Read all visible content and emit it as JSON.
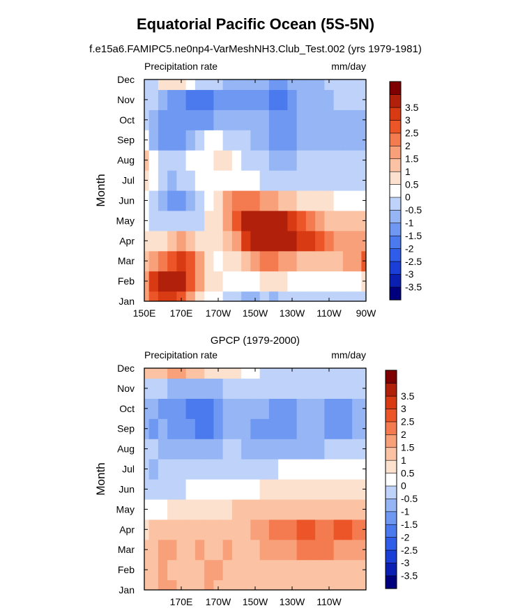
{
  "figure": {
    "title": "Equatorial Pacific Ocean (5S-5N)",
    "subtitle": "f.e15a6.FAMIPC5.ne0np4-VarMeshNH3.Club_Test.002 (yrs 1979-1981)"
  },
  "colorbar": {
    "colors": [
      "#00007f",
      "#0b1fb3",
      "#1b3ed6",
      "#2f5ce8",
      "#4a7aee",
      "#6e98f2",
      "#96b5f5",
      "#bfd3fa",
      "#ffffff",
      "#fde1cf",
      "#fbc2a3",
      "#f8a079",
      "#f47b4f",
      "#ec5528",
      "#d83a14",
      "#b0200b",
      "#7f0000"
    ],
    "tick_labels": [
      "-3.5",
      "-3",
      "-2.5",
      "-2",
      "-1.5",
      "-1",
      "-0.5",
      "0",
      "0.5",
      "1",
      "1.5",
      "2",
      "2.5",
      "3",
      "3.5"
    ]
  },
  "chart_data": [
    {
      "type": "heatmap",
      "title": "",
      "left_string": "Precipitation rate",
      "right_string": "mm/day",
      "xlabel": "",
      "ylabel": "Month",
      "x_ticks": [
        "150E",
        "170E",
        "170W",
        "150W",
        "130W",
        "110W",
        "90W"
      ],
      "x_values_deg_east": [
        150,
        170,
        190,
        210,
        230,
        250,
        270
      ],
      "y_ticks": [
        "Jan",
        "Feb",
        "Mar",
        "Apr",
        "May",
        "Jun",
        "Jul",
        "Aug",
        "Sep",
        "Oct",
        "Nov",
        "Dec"
      ],
      "levels": [
        -3.5,
        -3,
        -2.5,
        -2,
        -1.5,
        -1,
        -0.5,
        0,
        0.5,
        1,
        1.5,
        2,
        2.5,
        3,
        3.5
      ],
      "longitudes": [
        150,
        155,
        160,
        165,
        170,
        175,
        180,
        185,
        190,
        195,
        200,
        205,
        210,
        215,
        220,
        225,
        230,
        235,
        240,
        245,
        250,
        255,
        260,
        265,
        270
      ],
      "months": [
        "Jan",
        "Feb",
        "Mar",
        "Apr",
        "May",
        "Jun",
        "Jul",
        "Aug",
        "Sep",
        "Oct",
        "Nov",
        "Dec"
      ],
      "values": [
        [
          1.5,
          2.5,
          3.0,
          3.0,
          2.5,
          1.5,
          0.5,
          0.2,
          0.0,
          -0.3,
          -0.5,
          -0.6,
          -0.6,
          -0.5,
          -0.6,
          -0.5,
          -0.5,
          -0.5,
          -0.5,
          -0.5,
          -0.5,
          -0.5,
          -0.5,
          -0.5,
          -0.5
        ],
        [
          1.5,
          3.0,
          4.0,
          4.0,
          3.5,
          2.5,
          1.5,
          0.5,
          0.5,
          0.3,
          0.0,
          0.0,
          0.0,
          0.5,
          0.5,
          0.5,
          0.0,
          0.0,
          0.0,
          0.0,
          0.0,
          0.0,
          0.0,
          0.3,
          0.5
        ],
        [
          1.0,
          1.5,
          2.0,
          2.5,
          3.0,
          2.5,
          1.5,
          0.5,
          0.3,
          0.5,
          0.5,
          1.0,
          1.5,
          2.0,
          2.0,
          1.5,
          1.5,
          1.0,
          1.0,
          1.0,
          1.0,
          1.0,
          1.5,
          1.5,
          2.5
        ],
        [
          0.5,
          0.5,
          0.5,
          1.0,
          1.5,
          1.0,
          0.5,
          0.5,
          0.5,
          1.0,
          1.5,
          3.0,
          3.5,
          3.5,
          4.0,
          4.0,
          3.5,
          3.0,
          3.0,
          2.5,
          2.0,
          1.5,
          1.5,
          1.5,
          1.5
        ],
        [
          0.0,
          -0.5,
          -0.5,
          -0.5,
          -0.5,
          -0.5,
          -0.5,
          0.5,
          0.5,
          1.5,
          2.5,
          3.5,
          4.0,
          4.0,
          4.0,
          3.5,
          3.0,
          2.5,
          2.0,
          1.5,
          1.0,
          1.0,
          1.0,
          1.0,
          1.0
        ],
        [
          0.0,
          -0.5,
          -1.0,
          -1.5,
          -1.5,
          -1.0,
          -0.5,
          0.0,
          0.5,
          1.5,
          2.0,
          2.0,
          2.0,
          1.5,
          1.5,
          1.0,
          1.0,
          0.5,
          0.5,
          0.5,
          0.5,
          0.0,
          0.0,
          0.0,
          0.0
        ],
        [
          0.5,
          0.0,
          -0.5,
          -1.0,
          -0.5,
          -0.5,
          0.0,
          0.0,
          0.0,
          0.0,
          0.0,
          0.0,
          0.0,
          -0.5,
          -0.5,
          -0.5,
          -0.5,
          -0.5,
          -0.5,
          -0.5,
          -0.5,
          -0.5,
          -0.5,
          -0.5,
          -0.5
        ],
        [
          1.0,
          0.0,
          -0.5,
          -0.5,
          -0.5,
          0.0,
          0.0,
          0.0,
          0.5,
          0.5,
          0.0,
          -0.5,
          -0.5,
          -0.5,
          -1.0,
          -1.0,
          -1.0,
          -0.5,
          -0.5,
          -0.5,
          -0.5,
          -0.5,
          -0.5,
          -0.5,
          -0.5
        ],
        [
          0.0,
          -1.0,
          -1.5,
          -1.5,
          -1.5,
          -1.0,
          -0.5,
          0.0,
          0.0,
          -0.5,
          -0.5,
          -0.5,
          -1.0,
          -1.0,
          -1.5,
          -1.5,
          -1.5,
          -1.0,
          -1.0,
          -1.0,
          -1.0,
          -1.0,
          -1.0,
          -1.0,
          -1.0
        ],
        [
          -0.5,
          -1.0,
          -1.5,
          -1.5,
          -1.5,
          -1.5,
          -1.5,
          -1.5,
          -1.0,
          -1.0,
          -1.0,
          -1.0,
          -1.0,
          -1.0,
          -1.5,
          -1.5,
          -1.5,
          -1.0,
          -1.0,
          -1.0,
          -1.0,
          -1.0,
          -1.0,
          -1.0,
          -1.0
        ],
        [
          -0.5,
          -0.5,
          -1.0,
          -1.5,
          -1.5,
          -2.0,
          -2.0,
          -2.0,
          -1.5,
          -1.5,
          -1.5,
          -1.5,
          -1.5,
          -1.5,
          -2.0,
          -2.0,
          -1.5,
          -1.0,
          -1.0,
          -1.0,
          -1.0,
          -0.5,
          -0.5,
          -0.5,
          -0.5
        ],
        [
          -0.5,
          -0.5,
          0.5,
          0.5,
          0.5,
          0.0,
          -0.5,
          -0.5,
          -0.5,
          -1.0,
          -1.0,
          -1.0,
          -1.0,
          -1.0,
          -1.5,
          -1.5,
          -1.0,
          -1.0,
          -1.0,
          -1.0,
          -0.5,
          -0.5,
          -0.5,
          -0.5,
          -0.5
        ]
      ]
    },
    {
      "type": "heatmap",
      "title": "GPCP (1979-2000)",
      "left_string": "Precipitation rate",
      "right_string": "mm/day",
      "xlabel": "",
      "ylabel": "Month",
      "x_ticks": [
        "170E",
        "170W",
        "150W",
        "130W",
        "110W"
      ],
      "x_values_deg_east": [
        170,
        190,
        210,
        230,
        250
      ],
      "y_ticks": [
        "Jan",
        "Feb",
        "Mar",
        "Apr",
        "May",
        "Jun",
        "Jul",
        "Aug",
        "Sep",
        "Oct",
        "Nov",
        "Dec"
      ],
      "levels": [
        -3.5,
        -3,
        -2.5,
        -2,
        -1.5,
        -1,
        -0.5,
        0,
        0.5,
        1,
        1.5,
        2,
        2.5,
        3,
        3.5
      ],
      "longitudes": [
        150,
        155,
        160,
        165,
        170,
        175,
        180,
        185,
        190,
        195,
        200,
        205,
        210,
        215,
        220,
        225,
        230,
        235,
        240,
        245,
        250,
        255,
        260,
        265,
        270
      ],
      "months": [
        "Jan",
        "Feb",
        "Mar",
        "Apr",
        "May",
        "Jun",
        "Jul",
        "Aug",
        "Sep",
        "Oct",
        "Nov",
        "Dec"
      ],
      "values": [
        [
          1.0,
          1.0,
          1.5,
          1.5,
          1.0,
          1.0,
          1.0,
          1.5,
          1.0,
          1.0,
          1.0,
          1.0,
          1.0,
          1.0,
          1.0,
          1.0,
          1.0,
          1.0,
          1.0,
          1.0,
          1.0,
          1.0,
          1.0,
          1.0,
          1.0
        ],
        [
          1.0,
          1.0,
          1.5,
          1.0,
          1.0,
          1.0,
          1.0,
          1.5,
          1.5,
          1.0,
          1.0,
          1.0,
          1.0,
          1.0,
          1.0,
          1.0,
          1.0,
          1.0,
          1.0,
          1.0,
          1.0,
          1.0,
          1.0,
          1.0,
          1.0
        ],
        [
          1.0,
          1.0,
          1.5,
          1.5,
          1.0,
          1.0,
          1.5,
          1.0,
          1.0,
          1.5,
          1.0,
          1.0,
          1.0,
          1.5,
          1.5,
          1.5,
          1.5,
          2.0,
          2.0,
          2.0,
          2.0,
          1.5,
          1.5,
          1.5,
          1.5
        ],
        [
          0.5,
          1.0,
          1.0,
          1.0,
          1.0,
          1.0,
          1.0,
          1.0,
          1.0,
          1.0,
          1.0,
          1.0,
          1.5,
          1.5,
          2.0,
          2.0,
          2.0,
          2.5,
          2.5,
          2.0,
          2.0,
          2.5,
          2.5,
          2.0,
          2.0
        ],
        [
          0.0,
          0.0,
          0.0,
          0.5,
          0.5,
          0.5,
          0.5,
          0.5,
          0.5,
          0.5,
          1.0,
          1.0,
          1.0,
          1.0,
          1.0,
          1.0,
          1.0,
          1.0,
          1.0,
          1.0,
          1.0,
          1.0,
          1.0,
          1.0,
          1.0
        ],
        [
          -0.5,
          -0.5,
          -0.5,
          -0.5,
          -0.5,
          0.0,
          0.0,
          0.0,
          0.0,
          0.0,
          0.0,
          0.0,
          0.0,
          0.5,
          0.5,
          0.5,
          0.5,
          0.5,
          0.5,
          0.5,
          0.5,
          0.5,
          0.5,
          0.5,
          0.5
        ],
        [
          -0.5,
          -1.0,
          -0.5,
          -0.5,
          -0.5,
          -0.5,
          -0.5,
          -0.5,
          -0.5,
          -0.5,
          -0.5,
          -0.5,
          -0.5,
          -0.5,
          -0.5,
          0.0,
          0.0,
          0.0,
          0.0,
          0.0,
          0.0,
          0.0,
          0.0,
          0.0,
          0.0
        ],
        [
          -0.5,
          -0.5,
          -1.0,
          -1.0,
          -1.0,
          -1.0,
          -1.0,
          -1.0,
          -1.0,
          -0.5,
          -0.5,
          -1.0,
          -1.0,
          -1.0,
          -1.0,
          -1.0,
          -1.0,
          -1.0,
          -1.0,
          -1.0,
          -0.5,
          -0.5,
          -0.5,
          -0.5,
          -0.5
        ],
        [
          -1.0,
          -1.5,
          -1.0,
          -1.5,
          -1.5,
          -1.5,
          -2.0,
          -2.0,
          -1.5,
          -1.0,
          -1.0,
          -1.0,
          -1.5,
          -1.5,
          -1.5,
          -1.5,
          -1.5,
          -1.0,
          -1.0,
          -1.0,
          -1.5,
          -1.5,
          -1.5,
          -1.0,
          -1.0
        ],
        [
          -1.0,
          -1.0,
          -1.5,
          -1.5,
          -1.5,
          -2.0,
          -2.0,
          -2.0,
          -1.5,
          -1.0,
          -1.0,
          -1.0,
          -1.0,
          -1.0,
          -1.5,
          -1.5,
          -1.5,
          -1.0,
          -1.0,
          -1.0,
          -1.5,
          -1.5,
          -1.5,
          -1.0,
          -1.0
        ],
        [
          -0.5,
          -0.5,
          -0.5,
          -1.0,
          -1.0,
          -1.0,
          -1.0,
          -1.0,
          -1.0,
          -0.5,
          -0.5,
          -0.5,
          -0.5,
          -0.5,
          -0.5,
          -0.5,
          -0.5,
          -0.5,
          -0.5,
          -0.5,
          -0.5,
          -0.5,
          -0.5,
          -0.5,
          -0.5
        ],
        [
          1.0,
          1.0,
          1.0,
          1.5,
          1.5,
          1.0,
          1.0,
          0.5,
          0.5,
          0.5,
          0.5,
          0.0,
          0.0,
          -0.5,
          -0.5,
          -0.5,
          -0.5,
          -0.5,
          -0.5,
          -0.5,
          -0.5,
          -0.5,
          -0.5,
          -0.5,
          -0.5
        ]
      ]
    }
  ]
}
